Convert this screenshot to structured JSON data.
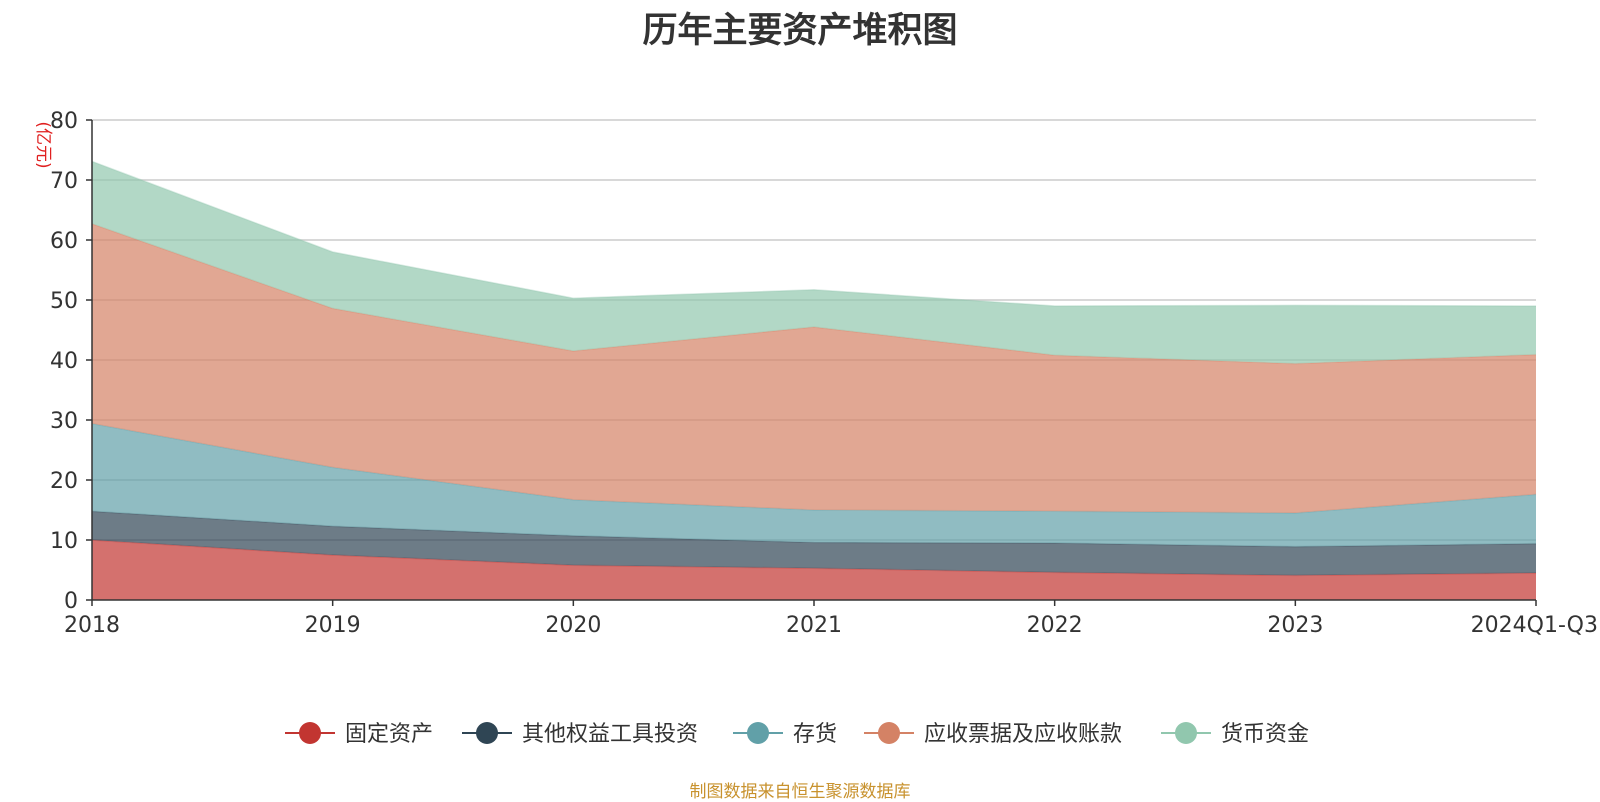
{
  "chart_data": {
    "type": "area",
    "stacked": true,
    "title": "历年主要资产堆积图",
    "ylabel": "(亿元)",
    "xlabel": "",
    "ylim": [
      0,
      80
    ],
    "yticks": [
      0,
      10,
      20,
      30,
      40,
      50,
      60,
      70,
      80
    ],
    "grid": true,
    "legend_position": "bottom-center",
    "categories": [
      "2018",
      "2019",
      "2020",
      "2021",
      "2022",
      "2023",
      "2024Q1-Q3"
    ],
    "series": [
      {
        "name": "固定资产",
        "color": "#c23531",
        "values": [
          10.0,
          7.5,
          5.8,
          5.3,
          4.6,
          4.1,
          4.5
        ]
      },
      {
        "name": "其他权益工具投资",
        "color": "#2f4554",
        "values": [
          4.8,
          4.8,
          4.9,
          4.3,
          4.9,
          4.8,
          4.9
        ]
      },
      {
        "name": "存货",
        "color": "#61a0a8",
        "values": [
          14.6,
          9.8,
          6.0,
          5.4,
          5.3,
          5.6,
          8.2
        ]
      },
      {
        "name": "应收票据及应收账款",
        "color": "#d48265",
        "values": [
          33.3,
          26.5,
          24.8,
          30.5,
          26.0,
          24.9,
          23.3
        ]
      },
      {
        "name": "货币资金",
        "color": "#91c7ae",
        "values": [
          10.4,
          9.4,
          8.8,
          6.2,
          8.2,
          9.7,
          8.1
        ]
      }
    ]
  },
  "source_note": "制图数据来自恒生聚源数据库"
}
